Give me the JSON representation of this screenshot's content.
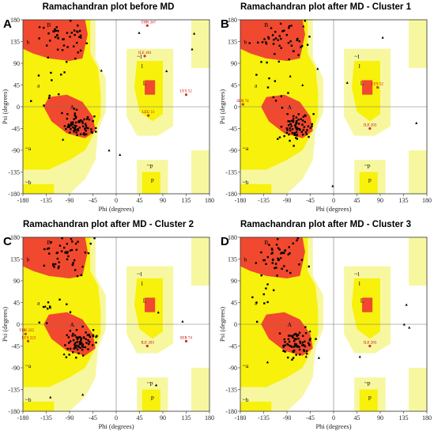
{
  "colors": {
    "core": "#f0492f",
    "allowed": "#f7f10c",
    "generous": "#f7f7a0",
    "outside": "#ffffff",
    "point": "#000000",
    "outlier": "#c0392b"
  },
  "chart_data": [
    {
      "letter": "A",
      "title": "Ramachandran plot before MD",
      "type": "scatter",
      "xlabel": "Phi (degrees)",
      "ylabel": "Psi (degrees)",
      "xlim": [
        -180,
        180
      ],
      "ylim": [
        -180,
        180
      ],
      "xticks": [
        "-180",
        "-135",
        "-90",
        "-45",
        "0",
        "45",
        "90",
        "135",
        "180"
      ],
      "yticks": [
        "180",
        "135",
        "90",
        "45",
        "0",
        "-45",
        "-90",
        "-135",
        "-180"
      ],
      "region_labels": [
        "B",
        "b",
        "A",
        "a",
        "L",
        "l",
        "p",
        "~b",
        "~p",
        "~a",
        "~l"
      ],
      "outliers": [
        {
          "label": "THR 267",
          "x": 60,
          "y": 168
        },
        {
          "label": "ILE 401",
          "x": 55,
          "y": 105
        },
        {
          "label": "LYS 52",
          "x": 135,
          "y": 25
        },
        {
          "label": "LEU 11",
          "x": 62,
          "y": -18
        }
      ]
    },
    {
      "letter": "B",
      "title": "Ramachandran plot after MD - Cluster 1",
      "type": "scatter",
      "xlabel": "Phi (degrees)",
      "ylabel": "Psi (degrees)",
      "xlim": [
        -180,
        180
      ],
      "ylim": [
        -180,
        180
      ],
      "xticks": [
        "-180",
        "-135",
        "-90",
        "-45",
        "0",
        "45",
        "90",
        "135",
        "180"
      ],
      "yticks": [
        "180",
        "135",
        "90",
        "45",
        "0",
        "-45",
        "-90",
        "-135",
        "-180"
      ],
      "region_labels": [
        "B",
        "b",
        "A",
        "a",
        "L",
        "l",
        "p",
        "~b",
        "~p",
        "~a",
        "~l"
      ],
      "outliers": [
        {
          "label": "LYS 52",
          "x": 85,
          "y": 40
        },
        {
          "label": "SER 74",
          "x": -175,
          "y": 5
        },
        {
          "label": "ILE 203",
          "x": 70,
          "y": -45
        }
      ]
    },
    {
      "letter": "C",
      "title": "Ramachandran plot after MD - Cluster 2",
      "type": "scatter",
      "xlabel": "Phi (degrees)",
      "ylabel": "Psi (degrees)",
      "xlim": [
        -180,
        180
      ],
      "ylim": [
        -180,
        180
      ],
      "xticks": [
        "-180",
        "-135",
        "-90",
        "-45",
        "0",
        "45",
        "90",
        "135",
        "180"
      ],
      "yticks": [
        "180",
        "135",
        "90",
        "45",
        "0",
        "-45",
        "-90",
        "-135",
        "-180"
      ],
      "region_labels": [
        "B",
        "b",
        "A",
        "a",
        "L",
        "l",
        "p",
        "~b",
        "~p",
        "~a",
        "~l"
      ],
      "outliers": [
        {
          "label": "THR 225",
          "x": -175,
          "y": -20
        },
        {
          "label": "LYS 223",
          "x": -170,
          "y": -35
        },
        {
          "label": "ILE 203",
          "x": 60,
          "y": -45
        },
        {
          "label": "SER 74",
          "x": 135,
          "y": -35
        }
      ]
    },
    {
      "letter": "D",
      "title": "Ramachandran plot after MD - Cluster 3",
      "type": "scatter",
      "xlabel": "Phi (degrees)",
      "ylabel": "Psi (degrees)",
      "xlim": [
        -180,
        180
      ],
      "ylim": [
        -180,
        180
      ],
      "xticks": [
        "-180",
        "-135",
        "-90",
        "-45",
        "0",
        "45",
        "90",
        "135",
        "180"
      ],
      "yticks": [
        "180",
        "135",
        "90",
        "45",
        "0",
        "-45",
        "-90",
        "-135",
        "-180"
      ],
      "region_labels": [
        "B",
        "b",
        "A",
        "a",
        "L",
        "l",
        "p",
        "~b",
        "~p",
        "~a",
        "~l"
      ],
      "outliers": [
        {
          "label": "ILE 203",
          "x": 70,
          "y": -45
        }
      ]
    }
  ]
}
